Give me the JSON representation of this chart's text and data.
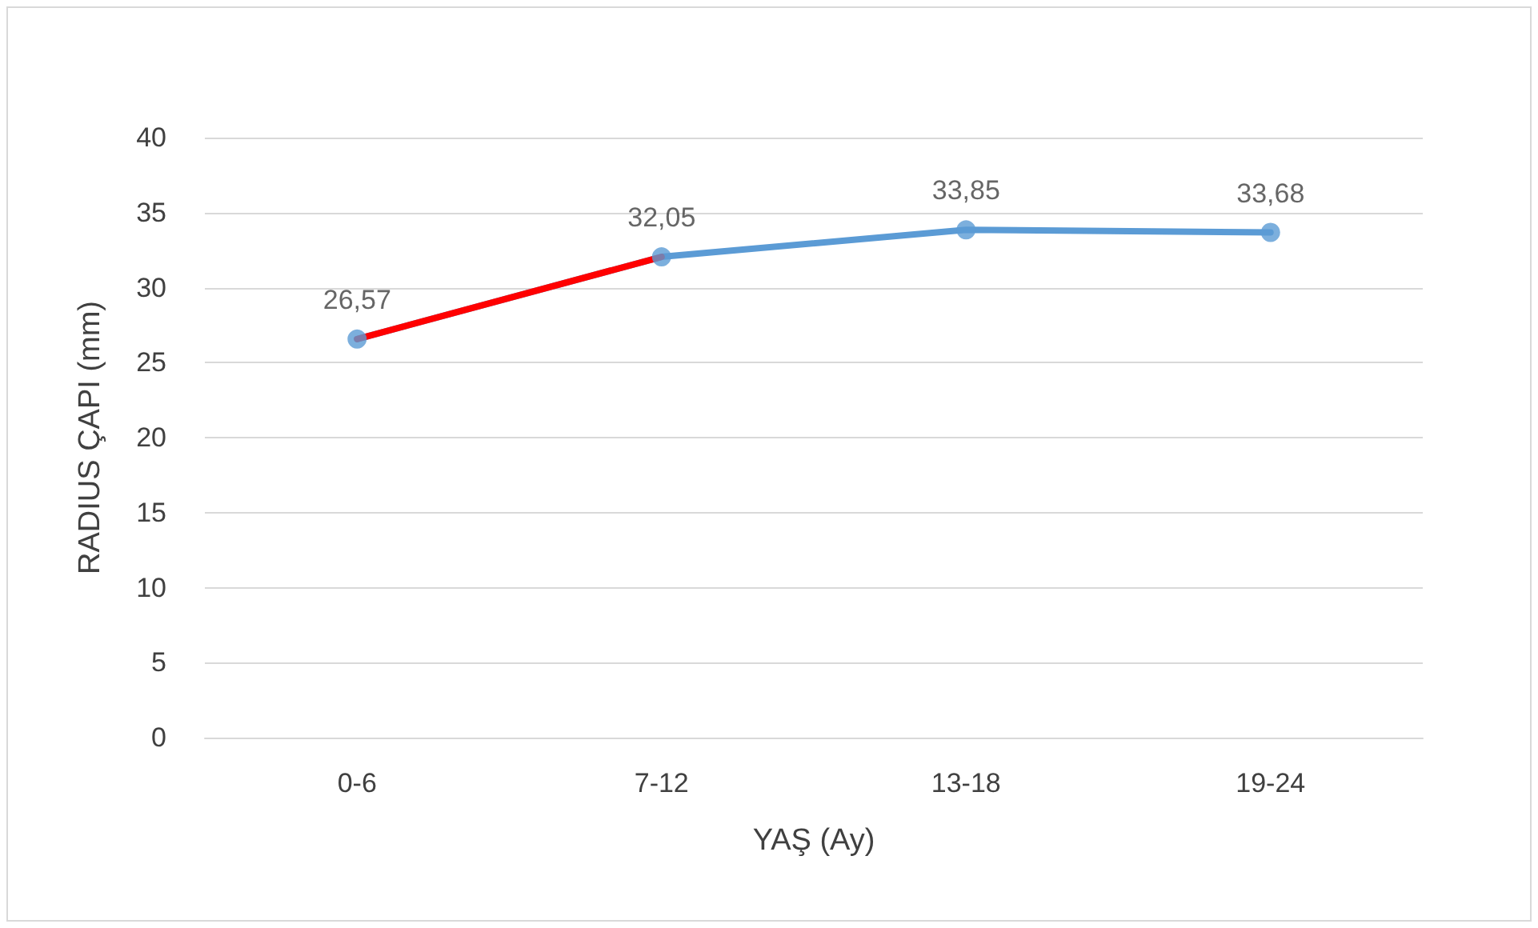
{
  "chart_data": {
    "type": "line",
    "xlabel": "YAŞ (Ay)",
    "ylabel": "RADIUS ÇAPI (mm)",
    "categories": [
      "0-6",
      "7-12",
      "13-18",
      "19-24"
    ],
    "series": [
      {
        "color": "#5b9bd5",
        "values": [
          26.57,
          32.05,
          33.85,
          33.68
        ],
        "marker": "circle",
        "value_labels": [
          "26,57",
          "32,05",
          "33,85",
          "33,68"
        ]
      },
      {
        "color": "#ff0000",
        "values": [
          26.57,
          32.05,
          null,
          null
        ],
        "marker": "none"
      }
    ],
    "ylim": [
      0,
      40
    ],
    "yticks": [
      0,
      5,
      10,
      15,
      20,
      25,
      30,
      35,
      40
    ],
    "grid": "y",
    "line_style": "solid"
  }
}
